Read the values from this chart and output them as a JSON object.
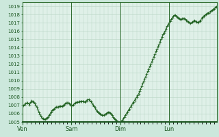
{
  "title": "",
  "bg_color": "#cce8dc",
  "plot_bg_color": "#dff0e8",
  "line_color": "#1a5c1a",
  "marker_color": "#1a5c1a",
  "grid_color": "#b8d4c4",
  "axis_label_color": "#1a5520",
  "tick_label_color": "#1a5520",
  "ylim": [
    1005,
    1019.5
  ],
  "yticks": [
    1005,
    1006,
    1007,
    1008,
    1009,
    1010,
    1011,
    1012,
    1013,
    1014,
    1015,
    1016,
    1017,
    1018,
    1019
  ],
  "day_labels": [
    "Ven",
    "Sam",
    "Dim",
    "Lun"
  ],
  "day_positions": [
    0,
    48,
    96,
    144
  ],
  "total_points": 192,
  "pressure_data": [
    1007.0,
    1007.0,
    1007.1,
    1007.2,
    1007.3,
    1007.3,
    1007.2,
    1007.1,
    1007.4,
    1007.6,
    1007.5,
    1007.4,
    1007.2,
    1007.0,
    1006.8,
    1006.5,
    1006.2,
    1005.9,
    1005.7,
    1005.5,
    1005.4,
    1005.3,
    1005.3,
    1005.4,
    1005.5,
    1005.6,
    1005.8,
    1006.0,
    1006.2,
    1006.4,
    1006.5,
    1006.6,
    1006.7,
    1006.8,
    1006.8,
    1006.8,
    1006.9,
    1006.9,
    1006.9,
    1006.9,
    1007.0,
    1007.1,
    1007.2,
    1007.3,
    1007.3,
    1007.3,
    1007.2,
    1007.1,
    1007.0,
    1007.0,
    1007.1,
    1007.2,
    1007.3,
    1007.4,
    1007.4,
    1007.4,
    1007.5,
    1007.5,
    1007.5,
    1007.5,
    1007.5,
    1007.4,
    1007.5,
    1007.6,
    1007.7,
    1007.7,
    1007.6,
    1007.5,
    1007.3,
    1007.1,
    1006.9,
    1006.7,
    1006.5,
    1006.3,
    1006.2,
    1006.1,
    1006.0,
    1005.9,
    1005.8,
    1005.8,
    1005.8,
    1005.9,
    1006.0,
    1006.1,
    1006.2,
    1006.2,
    1006.1,
    1006.0,
    1005.8,
    1005.6,
    1005.4,
    1005.3,
    1005.2,
    1005.1,
    1005.0,
    1004.9,
    1005.0,
    1005.1,
    1005.2,
    1005.4,
    1005.6,
    1005.8,
    1006.0,
    1006.2,
    1006.4,
    1006.6,
    1006.8,
    1007.0,
    1007.2,
    1007.4,
    1007.6,
    1007.8,
    1008.0,
    1008.2,
    1008.4,
    1008.7,
    1009.0,
    1009.3,
    1009.6,
    1009.9,
    1010.2,
    1010.5,
    1010.8,
    1011.1,
    1011.4,
    1011.7,
    1012.0,
    1012.3,
    1012.6,
    1012.9,
    1013.2,
    1013.5,
    1013.8,
    1014.1,
    1014.4,
    1014.7,
    1015.0,
    1015.3,
    1015.6,
    1015.8,
    1016.0,
    1016.3,
    1016.6,
    1016.8,
    1017.0,
    1017.2,
    1017.4,
    1017.6,
    1017.8,
    1017.9,
    1017.9,
    1017.8,
    1017.7,
    1017.6,
    1017.5,
    1017.4,
    1017.4,
    1017.5,
    1017.5,
    1017.5,
    1017.4,
    1017.3,
    1017.2,
    1017.1,
    1017.0,
    1016.9,
    1017.0,
    1017.1,
    1017.2,
    1017.3,
    1017.2,
    1017.1,
    1017.0,
    1017.1,
    1017.2,
    1017.3,
    1017.5,
    1017.7,
    1017.8,
    1017.9,
    1018.0,
    1018.1,
    1018.2,
    1018.2,
    1018.3,
    1018.4,
    1018.5,
    1018.6,
    1018.7,
    1018.8,
    1018.9,
    1019.0
  ]
}
